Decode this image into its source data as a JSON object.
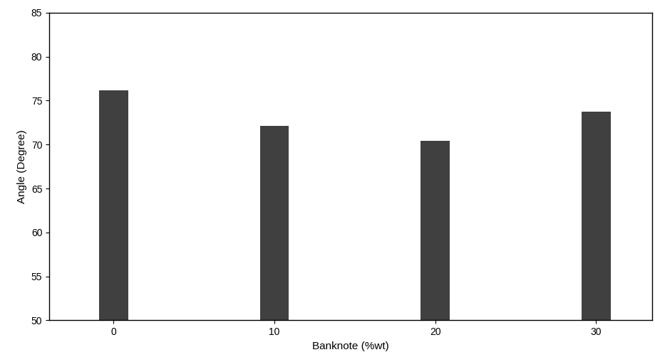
{
  "chart_data": {
    "type": "bar",
    "x_label": "Banknote (%wt)",
    "y_label": "Angle (Degree)",
    "categories": [
      "0",
      "10",
      "20",
      "30"
    ],
    "values": [
      76.2,
      72.1,
      70.4,
      73.7
    ],
    "color": "#404040",
    "ylim": [
      50,
      85
    ],
    "yticks": [
      50,
      55,
      60,
      65,
      70,
      75,
      80,
      85
    ],
    "grid": false
  }
}
